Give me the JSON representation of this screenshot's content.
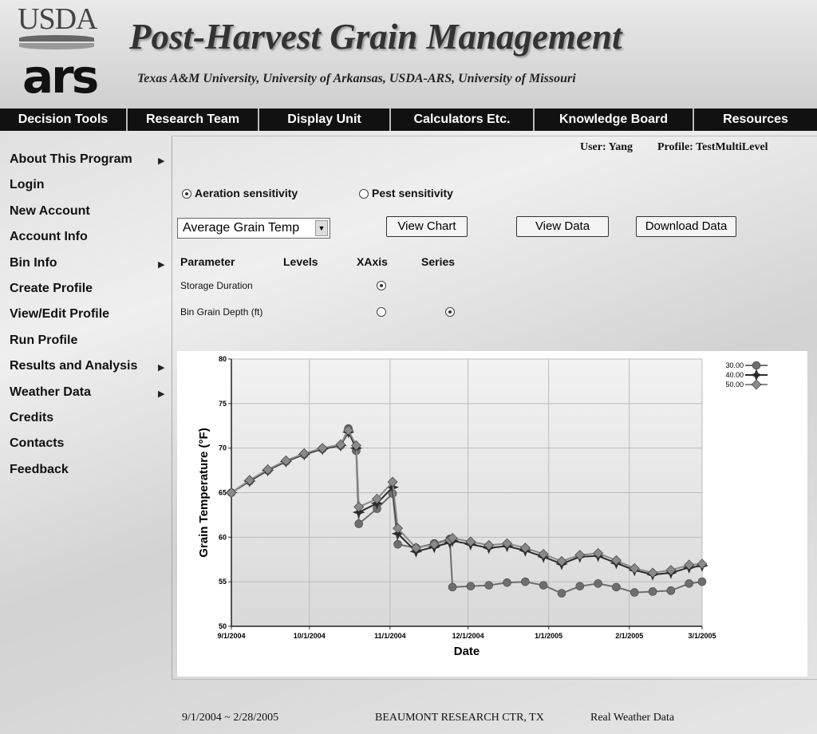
{
  "header": {
    "logo_top": "USDA",
    "logo_bottom": "ars",
    "title": "Post-Harvest Grain Management",
    "subtitle": "Texas A&M University, University of Arkansas, USDA-ARS, University of Missouri"
  },
  "nav": [
    "Decision Tools",
    "Research Team",
    "Display Unit",
    "Calculators Etc.",
    "Knowledge Board",
    "Resources"
  ],
  "sidebar": [
    {
      "label": "About This Program",
      "submenu": true
    },
    {
      "label": "Login",
      "submenu": false
    },
    {
      "label": "New Account",
      "submenu": false
    },
    {
      "label": "Account Info",
      "submenu": false
    },
    {
      "label": "Bin Info",
      "submenu": true
    },
    {
      "label": "Create Profile",
      "submenu": false
    },
    {
      "label": "View/Edit Profile",
      "submenu": false
    },
    {
      "label": "Run Profile",
      "submenu": false
    },
    {
      "label": "Results and Analysis",
      "submenu": true
    },
    {
      "label": "Weather Data",
      "submenu": true
    },
    {
      "label": "Credits",
      "submenu": false
    },
    {
      "label": "Contacts",
      "submenu": false
    },
    {
      "label": "Feedback",
      "submenu": false
    }
  ],
  "user": {
    "user": "User: Yang",
    "profile": "Profile: TestMultiLevel"
  },
  "controls": {
    "modes": [
      {
        "label": "Aeration sensitivity",
        "checked": true
      },
      {
        "label": "Pest sensitivity",
        "checked": false
      }
    ],
    "select": "Average Grain Temp",
    "buttons": [
      "View Chart",
      "View Data",
      "Download Data"
    ],
    "table_header": [
      "Parameter",
      "Levels",
      "XAxis",
      "Series"
    ],
    "rows": [
      {
        "label": "Storage Duration",
        "xaxis": true,
        "series": null
      },
      {
        "label": "Bin Grain Depth (ft)",
        "xaxis": false,
        "series": true
      }
    ]
  },
  "chart_data": {
    "type": "line",
    "x_label": "Date",
    "y_label": "Grain Temperature (°F)",
    "x": [
      "2004-09-01",
      "2004-09-08",
      "2004-09-15",
      "2004-09-22",
      "2004-09-29",
      "2004-10-06",
      "2004-10-13",
      "2004-10-16",
      "2004-10-19",
      "2004-10-20",
      "2004-10-27",
      "2004-11-02",
      "2004-11-04",
      "2004-11-11",
      "2004-11-18",
      "2004-11-24",
      "2004-11-25",
      "2004-12-02",
      "2004-12-09",
      "2004-12-16",
      "2004-12-23",
      "2004-12-30",
      "2005-01-06",
      "2005-01-13",
      "2005-01-20",
      "2005-01-27",
      "2005-02-03",
      "2005-02-10",
      "2005-02-17",
      "2005-02-24",
      "2005-03-01"
    ],
    "series": [
      {
        "name": "30.00",
        "color": "#6e6e6e",
        "marker": "circle",
        "values": [
          65,
          66.3,
          67.5,
          68.5,
          69.3,
          69.9,
          70.3,
          72.2,
          69.7,
          61.5,
          63.2,
          64.9,
          59.2,
          58.8,
          59.3,
          59.8,
          54.4,
          54.5,
          54.6,
          54.9,
          55,
          54.6,
          53.7,
          54.5,
          54.8,
          54.4,
          53.8,
          53.9,
          54,
          54.8,
          55
        ]
      },
      {
        "name": "40.00",
        "color": "#2b2b2b",
        "marker": "star",
        "values": [
          65,
          66.3,
          67.5,
          68.5,
          69.3,
          69.9,
          70.3,
          71.8,
          70,
          62.8,
          63.8,
          65.6,
          60.4,
          58.4,
          58.9,
          59.4,
          59.6,
          59.2,
          58.8,
          59,
          58.5,
          57.8,
          57,
          57.8,
          57.9,
          57.1,
          56.3,
          55.8,
          56,
          56.6,
          56.8
        ]
      },
      {
        "name": "50.00",
        "color": "#8a8a8a",
        "marker": "diamond",
        "values": [
          65,
          66.4,
          67.6,
          68.6,
          69.4,
          70,
          70.4,
          72,
          70.3,
          63.4,
          64.3,
          66.2,
          61,
          58.8,
          59.2,
          59.7,
          59.9,
          59.5,
          59.1,
          59.3,
          58.8,
          58.1,
          57.3,
          58,
          58.2,
          57.4,
          56.5,
          56,
          56.3,
          56.9,
          57
        ]
      }
    ],
    "xlim": [
      "2004-09-01",
      "2005-03-01"
    ],
    "xticks": [
      {
        "value": "2004-09-01",
        "label": "9/1/2004"
      },
      {
        "value": "2004-10-01",
        "label": "10/1/2004"
      },
      {
        "value": "2004-11-01",
        "label": "11/1/2004"
      },
      {
        "value": "2004-12-01",
        "label": "12/1/2004"
      },
      {
        "value": "2005-01-01",
        "label": "1/1/2005"
      },
      {
        "value": "2005-02-01",
        "label": "2/1/2005"
      },
      {
        "value": "2005-03-01",
        "label": "3/1/2005"
      }
    ],
    "ylim": [
      50,
      80
    ],
    "yticks": [
      50,
      55,
      60,
      65,
      70,
      75,
      80
    ],
    "grid": true,
    "legend": "top-right"
  },
  "footer": {
    "range": "9/1/2004 ~ 2/28/2005",
    "station": "BEAUMONT RESEARCH CTR, TX",
    "weather": "Real Weather Data"
  }
}
